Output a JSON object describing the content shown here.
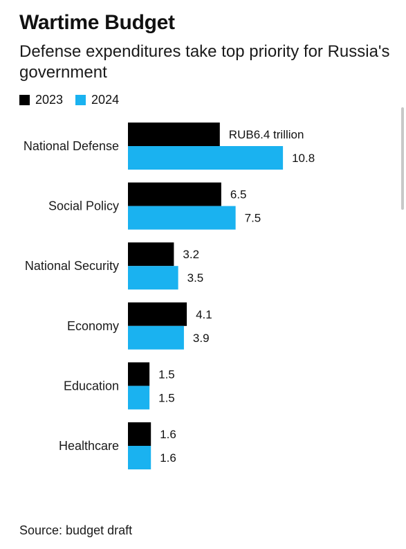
{
  "title": "Wartime Budget",
  "subtitle": "Defense expenditures take top priority for Russia's government",
  "source": "Source: budget draft",
  "colors": {
    "series_2023": "#000000",
    "series_2024": "#1ab2f0"
  },
  "chart_data": {
    "type": "bar",
    "orientation": "horizontal",
    "categories": [
      "National Defense",
      "Social Policy",
      "National Security",
      "Economy",
      "Education",
      "Healthcare"
    ],
    "series": [
      {
        "name": "2023",
        "values": [
          6.4,
          6.5,
          3.2,
          4.1,
          1.5,
          1.6
        ],
        "labels": [
          "RUB6.4 trillion",
          "6.5",
          "3.2",
          "4.1",
          "1.5",
          "1.6"
        ]
      },
      {
        "name": "2024",
        "values": [
          10.8,
          7.5,
          3.5,
          3.9,
          1.5,
          1.6
        ],
        "labels": [
          "10.8",
          "7.5",
          "3.5",
          "3.9",
          "1.5",
          "1.6"
        ]
      }
    ],
    "legend": "top-left",
    "grid": false
  }
}
